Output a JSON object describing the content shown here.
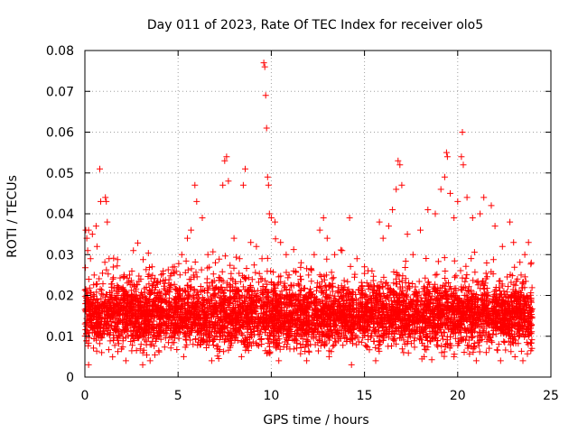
{
  "chart_data": {
    "type": "scatter",
    "title": "Day 011 of 2023, Rate Of TEC Index for receiver olo5",
    "xlabel": "GPS time / hours",
    "ylabel": "ROTI / TECUs",
    "xlim": [
      0,
      25
    ],
    "ylim": [
      0,
      0.08
    ],
    "xticks": [
      0,
      5,
      10,
      15,
      20,
      25
    ],
    "xtick_labels": [
      "0",
      "5",
      "10",
      "15",
      "20",
      "25"
    ],
    "yticks": [
      0,
      0.01,
      0.02,
      0.03,
      0.04,
      0.05,
      0.06,
      0.07,
      0.08
    ],
    "ytick_labels": [
      "0",
      "0.01",
      "0.02",
      "0.03",
      "0.04",
      "0.05",
      "0.06",
      "0.07",
      "0.08"
    ],
    "grid": true,
    "marker": "+",
    "color": "#ff0000",
    "data_range_x": [
      0,
      24
    ],
    "typical_band": [
      0.004,
      0.025
    ],
    "series": [
      {
        "name": "ROTI",
        "points": [
          [
            0.05,
            0.036
          ],
          [
            0.1,
            0.034
          ],
          [
            0.15,
            0.031
          ],
          [
            0.2,
            0.036
          ],
          [
            0.3,
            0.029
          ],
          [
            0.4,
            0.035
          ],
          [
            0.5,
            0.025
          ],
          [
            0.6,
            0.037
          ],
          [
            0.65,
            0.032
          ],
          [
            0.8,
            0.051
          ],
          [
            0.85,
            0.043
          ],
          [
            1.1,
            0.044
          ],
          [
            1.15,
            0.043
          ],
          [
            1.2,
            0.038
          ],
          [
            1.3,
            0.029
          ],
          [
            1.5,
            0.024
          ],
          [
            1.8,
            0.022
          ],
          [
            2.1,
            0.025
          ],
          [
            2.4,
            0.025
          ],
          [
            2.6,
            0.031
          ],
          [
            3.0,
            0.024
          ],
          [
            3.3,
            0.022
          ],
          [
            3.6,
            0.027
          ],
          [
            3.8,
            0.022
          ],
          [
            4.2,
            0.026
          ],
          [
            4.5,
            0.023
          ],
          [
            4.8,
            0.027
          ],
          [
            5.0,
            0.021
          ],
          [
            5.2,
            0.03
          ],
          [
            5.5,
            0.034
          ],
          [
            5.7,
            0.036
          ],
          [
            5.9,
            0.047
          ],
          [
            6.0,
            0.043
          ],
          [
            6.3,
            0.039
          ],
          [
            6.6,
            0.03
          ],
          [
            7.0,
            0.028
          ],
          [
            7.4,
            0.047
          ],
          [
            7.5,
            0.053
          ],
          [
            7.6,
            0.054
          ],
          [
            7.7,
            0.048
          ],
          [
            8.0,
            0.034
          ],
          [
            8.3,
            0.029
          ],
          [
            8.5,
            0.047
          ],
          [
            8.6,
            0.051
          ],
          [
            8.9,
            0.033
          ],
          [
            9.2,
            0.032
          ],
          [
            9.5,
            0.029
          ],
          [
            9.6,
            0.077
          ],
          [
            9.65,
            0.076
          ],
          [
            9.7,
            0.069
          ],
          [
            9.75,
            0.061
          ],
          [
            9.8,
            0.049
          ],
          [
            9.85,
            0.047
          ],
          [
            9.9,
            0.04
          ],
          [
            10.0,
            0.039
          ],
          [
            10.2,
            0.038
          ],
          [
            10.5,
            0.033
          ],
          [
            10.8,
            0.03
          ],
          [
            11.2,
            0.026
          ],
          [
            11.6,
            0.028
          ],
          [
            12.0,
            0.025
          ],
          [
            12.3,
            0.03
          ],
          [
            12.6,
            0.036
          ],
          [
            12.8,
            0.039
          ],
          [
            13.0,
            0.034
          ],
          [
            13.4,
            0.03
          ],
          [
            13.8,
            0.031
          ],
          [
            14.2,
            0.039
          ],
          [
            14.6,
            0.029
          ],
          [
            15.0,
            0.027
          ],
          [
            15.4,
            0.026
          ],
          [
            15.8,
            0.038
          ],
          [
            16.0,
            0.034
          ],
          [
            16.3,
            0.037
          ],
          [
            16.5,
            0.041
          ],
          [
            16.7,
            0.046
          ],
          [
            16.8,
            0.053
          ],
          [
            16.9,
            0.052
          ],
          [
            17.0,
            0.047
          ],
          [
            17.3,
            0.035
          ],
          [
            17.6,
            0.03
          ],
          [
            18.0,
            0.036
          ],
          [
            18.4,
            0.041
          ],
          [
            18.8,
            0.04
          ],
          [
            19.1,
            0.046
          ],
          [
            19.3,
            0.049
          ],
          [
            19.4,
            0.055
          ],
          [
            19.45,
            0.054
          ],
          [
            19.6,
            0.045
          ],
          [
            19.8,
            0.039
          ],
          [
            20.0,
            0.043
          ],
          [
            20.2,
            0.054
          ],
          [
            20.25,
            0.06
          ],
          [
            20.3,
            0.052
          ],
          [
            20.5,
            0.044
          ],
          [
            20.8,
            0.039
          ],
          [
            21.2,
            0.04
          ],
          [
            21.4,
            0.044
          ],
          [
            21.8,
            0.042
          ],
          [
            22.0,
            0.037
          ],
          [
            22.4,
            0.032
          ],
          [
            22.8,
            0.038
          ],
          [
            23.0,
            0.033
          ],
          [
            23.4,
            0.025
          ],
          [
            23.6,
            0.03
          ],
          [
            23.8,
            0.033
          ],
          [
            23.95,
            0.028
          ],
          [
            0.2,
            0.003
          ],
          [
            0.9,
            0.006
          ],
          [
            2.2,
            0.004
          ],
          [
            3.1,
            0.003
          ],
          [
            3.5,
            0.004
          ],
          [
            5.3,
            0.005
          ],
          [
            6.8,
            0.004
          ],
          [
            8.4,
            0.005
          ],
          [
            10.4,
            0.004
          ],
          [
            11.9,
            0.004
          ],
          [
            13.1,
            0.005
          ],
          [
            14.3,
            0.003
          ],
          [
            15.6,
            0.004
          ],
          [
            17.1,
            0.006
          ],
          [
            18.2,
            0.005
          ],
          [
            19.8,
            0.005
          ],
          [
            21.0,
            0.004
          ],
          [
            22.3,
            0.004
          ],
          [
            23.5,
            0.004
          ]
        ]
      }
    ]
  }
}
